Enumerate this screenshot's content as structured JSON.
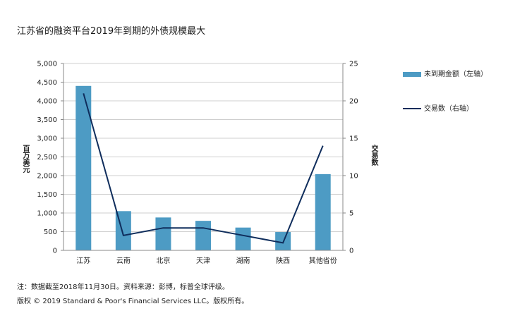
{
  "title": "江苏省的融资平台2019年到期的外债规模最大",
  "chart_data": {
    "type": "bar",
    "categories": [
      "江苏",
      "云南",
      "北京",
      "天津",
      "湖南",
      "陕西",
      "其他省份"
    ],
    "series": [
      {
        "name": "未到期金额（左轴）",
        "kind": "bar",
        "axis": "left",
        "color": "#4d9bc4",
        "values": [
          4400,
          1050,
          880,
          790,
          610,
          490,
          2040
        ]
      },
      {
        "name": "交易数（右轴）",
        "kind": "line",
        "axis": "right",
        "color": "#0f2d5c",
        "values": [
          21,
          2,
          3,
          3,
          2,
          1,
          14
        ]
      }
    ],
    "ylabel_left": "百万美元",
    "ylabel_right": "交易数",
    "ylim_left": [
      0,
      5000
    ],
    "ylim_right": [
      0,
      25
    ],
    "yticks_left": [
      "0",
      "500",
      "1,000",
      "1,500",
      "2,000",
      "2,500",
      "3,000",
      "3,500",
      "4,000",
      "4,500",
      "5,000"
    ],
    "yticks_right": [
      "0",
      "5",
      "10",
      "15",
      "20",
      "25"
    ],
    "grid": true,
    "legend_position": "right"
  },
  "footnote": "注：数据截至2018年11月30日。资料来源：彭博，标普全球评级。",
  "copyright": "版权 © 2019 Standard & Poor's Financial Services LLC。版权所有。"
}
